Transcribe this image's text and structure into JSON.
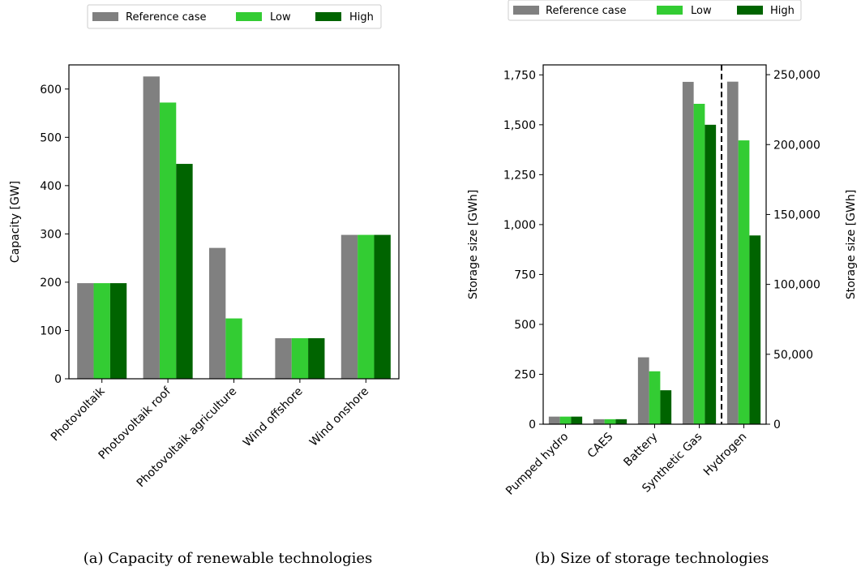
{
  "colors": {
    "reference": "#808080",
    "low": "#33cc33",
    "high": "#006400",
    "axis": "#000000"
  },
  "legend_labels": [
    "Reference case",
    "Low",
    "High"
  ],
  "chart_data": [
    {
      "type": "bar",
      "caption": "(a) Capacity of renewable technologies",
      "ylabel": "Capacity [GW]",
      "ylim": [
        0,
        650
      ],
      "yticks": [
        0,
        100,
        200,
        300,
        400,
        500,
        600
      ],
      "categories": [
        "Photovoltaik",
        "Photovoltaik roof",
        "Photovoltaik agriculture",
        "Wind offshore",
        "Wind onshore"
      ],
      "series": [
        {
          "name": "Reference case",
          "values": [
            198,
            626,
            271,
            84,
            298
          ]
        },
        {
          "name": "Low",
          "values": [
            198,
            572,
            125,
            84,
            298
          ]
        },
        {
          "name": "High",
          "values": [
            198,
            445,
            0,
            84,
            298
          ]
        }
      ],
      "legend_position": "top"
    },
    {
      "type": "bar",
      "caption": "(b) Size of storage technologies",
      "ylabel": "Storage size [GWh]",
      "ylim": [
        0,
        1800
      ],
      "yticks": [
        0,
        250,
        500,
        750,
        1000,
        1250,
        1500,
        1750
      ],
      "ytick_labels": [
        "0",
        "250",
        "500",
        "750",
        "1,000",
        "1,250",
        "1,500",
        "1,750"
      ],
      "y2label": "Storage size [GWh]",
      "y2lim": [
        0,
        257000
      ],
      "y2ticks": [
        0,
        50000,
        100000,
        150000,
        200000,
        250000
      ],
      "y2tick_labels": [
        "0",
        "50,000",
        "100,000",
        "150,000",
        "200,000",
        "250,000"
      ],
      "categories": [
        "Pumped hydro",
        "CAES",
        "Battery",
        "Synthetic Gas",
        "Hydrogen"
      ],
      "secondary_axis_categories": [
        "Hydrogen"
      ],
      "divider": "dashed vertical line between Synthetic Gas and Hydrogen",
      "series": [
        {
          "name": "Reference case",
          "values": [
            38,
            25,
            335,
            1715,
            245000
          ]
        },
        {
          "name": "Low",
          "values": [
            38,
            25,
            265,
            1605,
            203000
          ]
        },
        {
          "name": "High",
          "values": [
            38,
            25,
            170,
            1500,
            135000
          ]
        }
      ],
      "legend_position": "top"
    }
  ]
}
